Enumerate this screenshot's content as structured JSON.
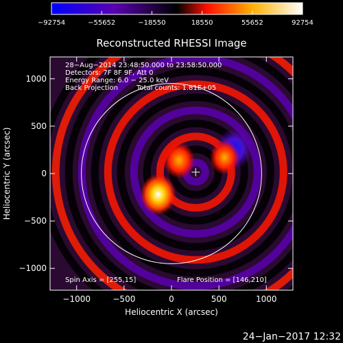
{
  "chart_data": {
    "type": "heatmap",
    "title": "Reconstructed RHESSI Image",
    "xlabel": "Heliocentric X (arcsec)",
    "ylabel": "Heliocentric Y (arcsec)",
    "xlim": [
      -1280,
      1280
    ],
    "ylim": [
      -1230,
      1230
    ],
    "xticks": [
      -1000,
      -500,
      0,
      500,
      1000
    ],
    "xtick_labels": [
      "−1000",
      "−500",
      "0",
      "500",
      "1000"
    ],
    "yticks": [
      -1000,
      -500,
      0,
      500,
      1000
    ],
    "ytick_labels": [
      "−1000",
      "−500",
      "0",
      "500",
      "1000"
    ],
    "colorbar": {
      "min": -92754,
      "max": 92754,
      "tick_labels": [
        "−92754",
        "−55652",
        "−18550",
        "18550",
        "55652",
        "92754"
      ],
      "colors": [
        "#0000ff",
        "#5a00b0",
        "#000000",
        "#ff1000",
        "#ffb000",
        "#ffffff"
      ]
    },
    "info_lines": [
      "28−Aug−2014 23:48:50.000 to 23:58:50.000",
      "Detectors: 7F 8F 9F, Att 0",
      "Energy Range: 6.0 − 25.0 keV"
    ],
    "method": "Back Projection",
    "total_counts": "Total counts: 1.81E+05",
    "spin_axis": "Spin Axis = [255,15]",
    "flare_position_label": "Flare Position = [146,210]",
    "solar_limb_radius": 950,
    "crosshair_position": [
      255,
      15
    ],
    "sources": [
      {
        "x": -140,
        "y": -220,
        "sign": "positive",
        "peak": 92754
      },
      {
        "x": 80,
        "y": 140,
        "sign": "positive",
        "peak": 70000
      },
      {
        "x": 660,
        "y": 260,
        "sign": "negative",
        "peak": -92754
      },
      {
        "x": 560,
        "y": 170,
        "sign": "positive",
        "peak": 60000
      }
    ]
  },
  "footer": {
    "timestamp": "24−Jan−2017 12:32"
  }
}
